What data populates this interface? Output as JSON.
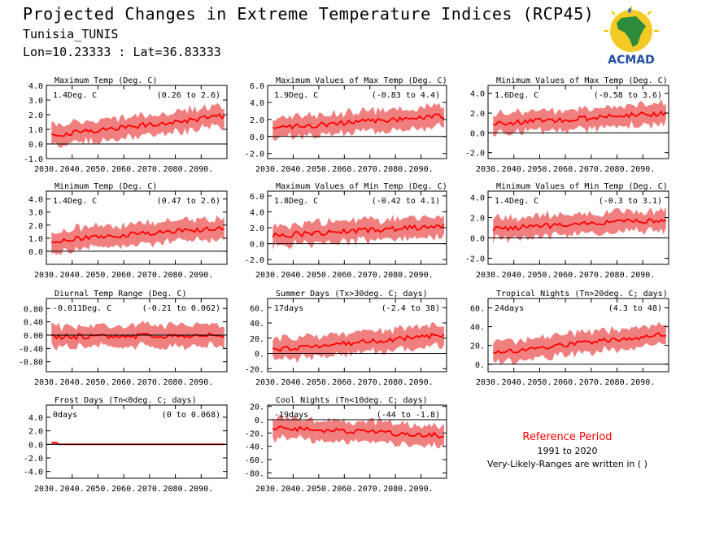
{
  "header": {
    "title": "Projected Changes in Extreme Temperature Indices (RCP45)",
    "station": "Tunisia_TUNIS",
    "coords": "Lon=10.23333 : Lat=36.83333"
  },
  "logo": {
    "text": "ACMAD",
    "icon": "africa-map-sun-logo"
  },
  "reference": {
    "title": "Reference Period",
    "period": "1991 to 2020",
    "note": "Very-Likely-Ranges are written in ( )"
  },
  "colors": {
    "band": "#f08080",
    "line": "#ff0000",
    "zero": "#000000"
  },
  "chart_data": [
    {
      "type": "line",
      "title": "Maximum Temp (Deg. C)",
      "change": "1.4Deg. C",
      "range": "(0.26 to 2.6)",
      "x_ticks": [
        "2030.",
        "2040.",
        "2050.",
        "2060.",
        "2070.",
        "2080.",
        "2090."
      ],
      "y_ticks": [
        "4.0",
        "3.0",
        "2.0",
        "1.0",
        "0.0",
        "-1.0"
      ],
      "ylim": [
        -1.0,
        4.0
      ],
      "x_range": [
        2030,
        2100
      ],
      "series_start": 0.6,
      "series_end": 1.9
    },
    {
      "type": "line",
      "title": "Maximum Values of Max Temp (Deg. C)",
      "change": "1.9Deg. C",
      "range": "(-0.83 to 4.4)",
      "x_ticks": [
        "2030.",
        "2040.",
        "2050.",
        "2060.",
        "2070.",
        "2080.",
        "2090."
      ],
      "y_ticks": [
        "6.0",
        "4.0",
        "2.0",
        "0.0",
        "-2.0"
      ],
      "ylim": [
        -2.6,
        6.0
      ],
      "x_range": [
        2030,
        2100
      ],
      "series_start": 1.0,
      "series_end": 2.4
    },
    {
      "type": "line",
      "title": "Minimum Values of Max Temp (Deg. C)",
      "change": "1.6Deg. C",
      "range": "(-0.58 to 3.6)",
      "x_ticks": [
        "2030.",
        "2040.",
        "2050.",
        "2060.",
        "2070.",
        "2080.",
        "2090."
      ],
      "y_ticks": [
        "4.0",
        "2.0",
        "0.0",
        "-2.0"
      ],
      "ylim": [
        -2.6,
        4.8
      ],
      "x_range": [
        2030,
        2100
      ],
      "series_start": 0.9,
      "series_end": 2.0
    },
    {
      "type": "line",
      "title": "Minimum Temp (Deg. C)",
      "change": "1.4Deg. C",
      "range": "(0.47 to 2.6)",
      "x_ticks": [
        "2030.",
        "2040.",
        "2050.",
        "2060.",
        "2070.",
        "2080.",
        "2090."
      ],
      "y_ticks": [
        "4.0",
        "3.0",
        "2.0",
        "1.0",
        "0.0"
      ],
      "ylim": [
        -1.0,
        4.6
      ],
      "x_range": [
        2030,
        2100
      ],
      "series_start": 0.8,
      "series_end": 1.8
    },
    {
      "type": "line",
      "title": "Maximum Values of Min Temp (Deg. C)",
      "change": "1.8Deg. C",
      "range": "(-0.42 to 4.1)",
      "x_ticks": [
        "2030.",
        "2040.",
        "2050.",
        "2060.",
        "2070.",
        "2080.",
        "2090."
      ],
      "y_ticks": [
        "6.0",
        "4.0",
        "2.0",
        "0.0",
        "-2.0"
      ],
      "ylim": [
        -2.6,
        6.6
      ],
      "x_range": [
        2030,
        2100
      ],
      "series_start": 1.0,
      "series_end": 2.2
    },
    {
      "type": "line",
      "title": "Minimum Values of Min Temp (Deg. C)",
      "change": "1.4Deg. C",
      "range": "(-0.3 to 3.1)",
      "x_ticks": [
        "2030.",
        "2040.",
        "2050.",
        "2060.",
        "2070.",
        "2080.",
        "2090."
      ],
      "y_ticks": [
        "4.0",
        "2.0",
        "0.0",
        "-2.0"
      ],
      "ylim": [
        -2.6,
        4.6
      ],
      "x_range": [
        2030,
        2100
      ],
      "series_start": 0.9,
      "series_end": 1.8
    },
    {
      "type": "line",
      "title": "Diurnal Temp Range (Deg. C)",
      "change": "-0.011Deg. C",
      "range": "(-0.21 to 0.062)",
      "x_ticks": [
        "2030.",
        "2040.",
        "2050.",
        "2060.",
        "2070.",
        "2080.",
        "2090."
      ],
      "y_ticks": [
        "0.80",
        "0.40",
        "0.00",
        "-0.40",
        "-0.80"
      ],
      "ylim": [
        -1.1,
        1.1
      ],
      "x_range": [
        2030,
        2100
      ],
      "series_start": -0.05,
      "series_end": 0.0
    },
    {
      "type": "line",
      "title": "Summer Days (Tx>30deg. C; days)",
      "change": "17days",
      "range": "(-2.4 to 38)",
      "x_ticks": [
        "2030.",
        "2040.",
        "2050.",
        "2060.",
        "2070.",
        "2080.",
        "2090."
      ],
      "y_ticks": [
        "60.",
        "40.",
        "20.",
        "0.",
        "-20."
      ],
      "ylim": [
        -24,
        72
      ],
      "x_range": [
        2030,
        2100
      ],
      "series_start": 5,
      "series_end": 24
    },
    {
      "type": "line",
      "title": "Tropical Nights (Tn>20deg. C; days)",
      "change": "24days",
      "range": "(4.3 to 48)",
      "x_ticks": [
        "2030.",
        "2040.",
        "2050.",
        "2060.",
        "2070.",
        "2080.",
        "2090."
      ],
      "y_ticks": [
        "60.",
        "40.",
        "20.",
        "0."
      ],
      "ylim": [
        -8,
        70
      ],
      "x_range": [
        2030,
        2100
      ],
      "series_start": 12,
      "series_end": 32
    },
    {
      "type": "line",
      "title": "Frost Days (Tn<0deg. C; days)",
      "change": "0days",
      "range": "(0 to 0.068)",
      "x_ticks": [
        "2030.",
        "2040.",
        "2050.",
        "2060.",
        "2070.",
        "2080.",
        "2090."
      ],
      "y_ticks": [
        "4.0",
        "2.0",
        "0.0",
        "-2.0",
        "-4.0"
      ],
      "ylim": [
        -5.0,
        5.8
      ],
      "x_range": [
        2030,
        2100
      ],
      "series_start": 0.0,
      "series_end": 0.0
    },
    {
      "type": "line",
      "title": "Cool Nights (Tn<10deg. C; days)",
      "change": "-19days",
      "range": "(-44 to -1.8)",
      "x_ticks": [
        "2030.",
        "2040.",
        "2050.",
        "2060.",
        "2070.",
        "2080.",
        "2090."
      ],
      "y_ticks": [
        "20.",
        "0.",
        "-20.",
        "-40.",
        "-60.",
        "-80."
      ],
      "ylim": [
        -88,
        22
      ],
      "x_range": [
        2030,
        2100
      ],
      "series_start": -12,
      "series_end": -24
    }
  ]
}
